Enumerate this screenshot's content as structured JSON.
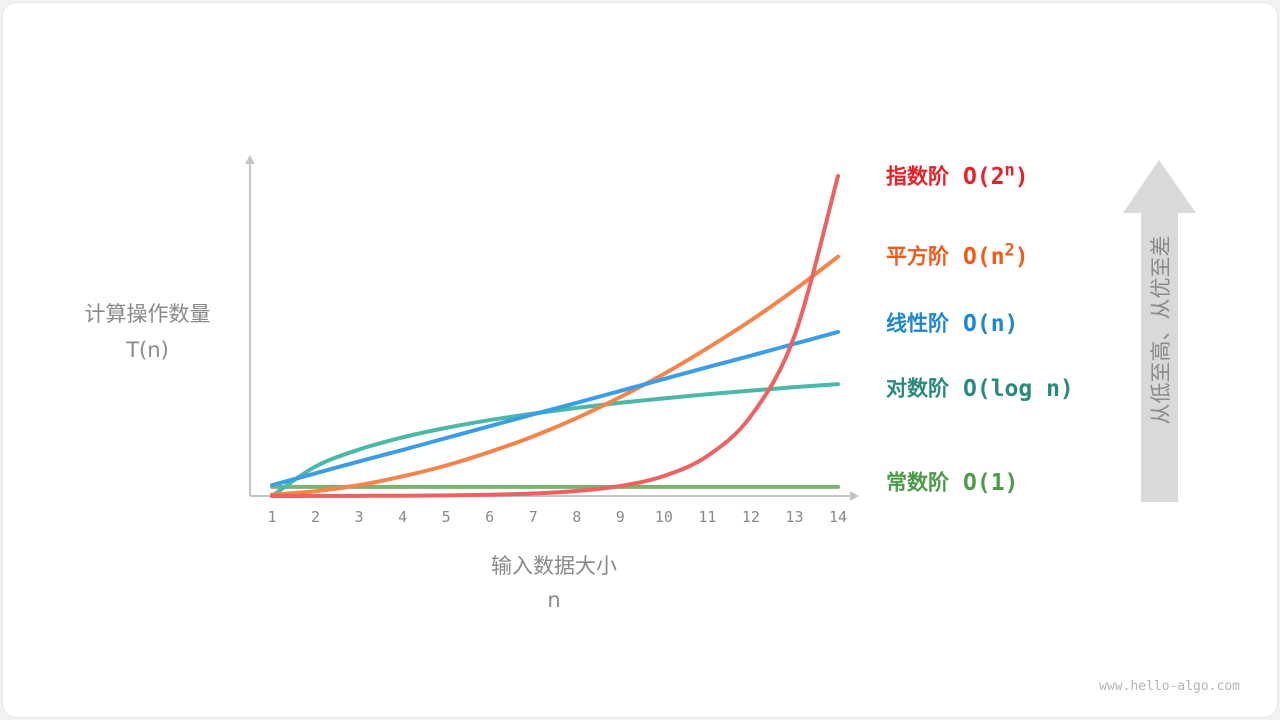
{
  "chart_data": {
    "type": "line",
    "xlabel": "输入数据大小",
    "xlabel_sub": "n",
    "ylabel": "计算操作数量",
    "ylabel_sub": "T(n)",
    "x": [
      1,
      2,
      3,
      4,
      5,
      6,
      7,
      8,
      9,
      10,
      11,
      12,
      13,
      14
    ],
    "ylim": [
      0,
      100
    ],
    "grid": false,
    "legend_placement": "right",
    "series": [
      {
        "name": "指数阶",
        "notation": "O(2",
        "sup": "n",
        "tail": ")",
        "line_color": "#ec6262",
        "label_color": "#e3222a",
        "values": [
          0.01,
          0.02,
          0.05,
          0.09,
          0.18,
          0.37,
          0.74,
          1.47,
          2.95,
          5.9,
          11.8,
          23.6,
          47.2,
          94.4
        ]
      },
      {
        "name": "平方阶",
        "notation": "O(n",
        "sup": "2",
        "tail": ")",
        "line_color": "#f5844c",
        "label_color": "#f05a1a",
        "values": [
          0.4,
          1.4,
          3.2,
          5.8,
          9.0,
          13.0,
          17.6,
          23.0,
          29.2,
          36.0,
          43.6,
          51.8,
          60.8,
          70.6
        ]
      },
      {
        "name": "线性阶",
        "notation": "O(n)",
        "sup": "",
        "tail": "",
        "line_color": "#3b9de6",
        "label_color": "#1f86d0",
        "values": [
          3.2,
          6.7,
          10.2,
          13.6,
          17.1,
          20.6,
          24.1,
          27.5,
          31.0,
          34.5,
          38.0,
          41.4,
          44.9,
          48.4
        ]
      },
      {
        "name": "对数阶",
        "notation": "O(log n)",
        "sup": "",
        "tail": "",
        "line_color": "#4cb8a8",
        "label_color": "#2a8a7e",
        "values": [
          0,
          8.7,
          13.7,
          17.3,
          20.1,
          22.4,
          24.3,
          26.0,
          27.5,
          28.8,
          30.0,
          31.1,
          32.1,
          33.0
        ]
      },
      {
        "name": "常数阶",
        "notation": "O(1)",
        "sup": "",
        "tail": "",
        "line_color": "#7ab26e",
        "label_color": "#4d9a4d",
        "values": [
          2.7,
          2.7,
          2.7,
          2.7,
          2.7,
          2.7,
          2.7,
          2.7,
          2.7,
          2.7,
          2.7,
          2.7,
          2.7,
          2.7
        ]
      }
    ]
  },
  "arrow": {
    "label": "从低至高、从优至差",
    "color": "#d9d9d9"
  },
  "watermark": "www.hello-algo.com"
}
